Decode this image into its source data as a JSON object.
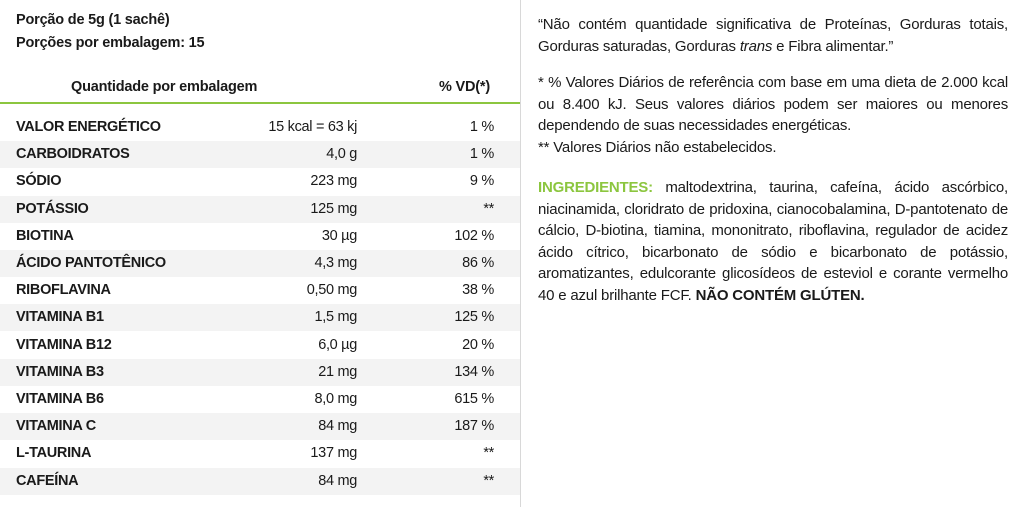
{
  "header": {
    "serving": "Porção de 5g (1 sachê)",
    "servings_per_pack": "Porções por embalagem: 15"
  },
  "table": {
    "columns": [
      "Quantidade por embalagem",
      "% VD(*)"
    ],
    "rows": [
      [
        "VALOR ENERGÉTICO",
        "15 kcal = 63 kj",
        "1 %"
      ],
      [
        "CARBOIDRATOS",
        "4,0 g",
        "1 %"
      ],
      [
        "SÓDIO",
        "223 mg",
        "9 %"
      ],
      [
        "POTÁSSIO",
        "125 mg",
        "**"
      ],
      [
        "BIOTINA",
        "30 µg",
        "102 %"
      ],
      [
        "ÁCIDO PANTOTÊNICO",
        "4,3 mg",
        "86 %"
      ],
      [
        "RIBOFLAVINA",
        "0,50 mg",
        "38 %"
      ],
      [
        "VITAMINA B1",
        "1,5 mg",
        "125 %"
      ],
      [
        "VITAMINA B12",
        "6,0 µg",
        "20 %"
      ],
      [
        "VITAMINA B3",
        "21 mg",
        "134 %"
      ],
      [
        "VITAMINA B6",
        "8,0 mg",
        "615 %"
      ],
      [
        "VITAMINA C",
        "84 mg",
        "187 %"
      ],
      [
        "L-TAURINA",
        "137 mg",
        "**"
      ],
      [
        "CAFEÍNA",
        "84 mg",
        "**"
      ]
    ]
  },
  "notes": {
    "claim": [
      "“Não contém quantidade significativa de Proteínas, Gorduras totais, Gorduras saturadas, Gorduras ",
      "trans",
      " e Fibra alimentar.”"
    ],
    "footnote_1": "* % Valores Diários de referência com base em uma dieta de 2.000 kcal ou 8.400 kJ. Seus valores diários podem ser maiores ou menores dependendo de suas necessidades energéticas.",
    "footnote_2": "** Valores Diários não estabelecidos."
  },
  "ingredients": {
    "label": "INGREDIENTES:",
    "text": " maltodextrina, taurina, cafeína, ácido ascórbico, niacinamida, cloridrato de pridoxina, cianocobalamina, D-pantotenato de cálcio, D-biotina, tiamina, mononitrato, riboflavina, regulador de acidez ácido cítrico, bicarbonato de sódio e bicarbonato de potássio, aromatizantes, edulcorante glicosídeos de esteviol e corante vermelho 40 e azul brilhante FCF. ",
    "allergen": "NÃO CONTÉM GLÚTEN."
  }
}
